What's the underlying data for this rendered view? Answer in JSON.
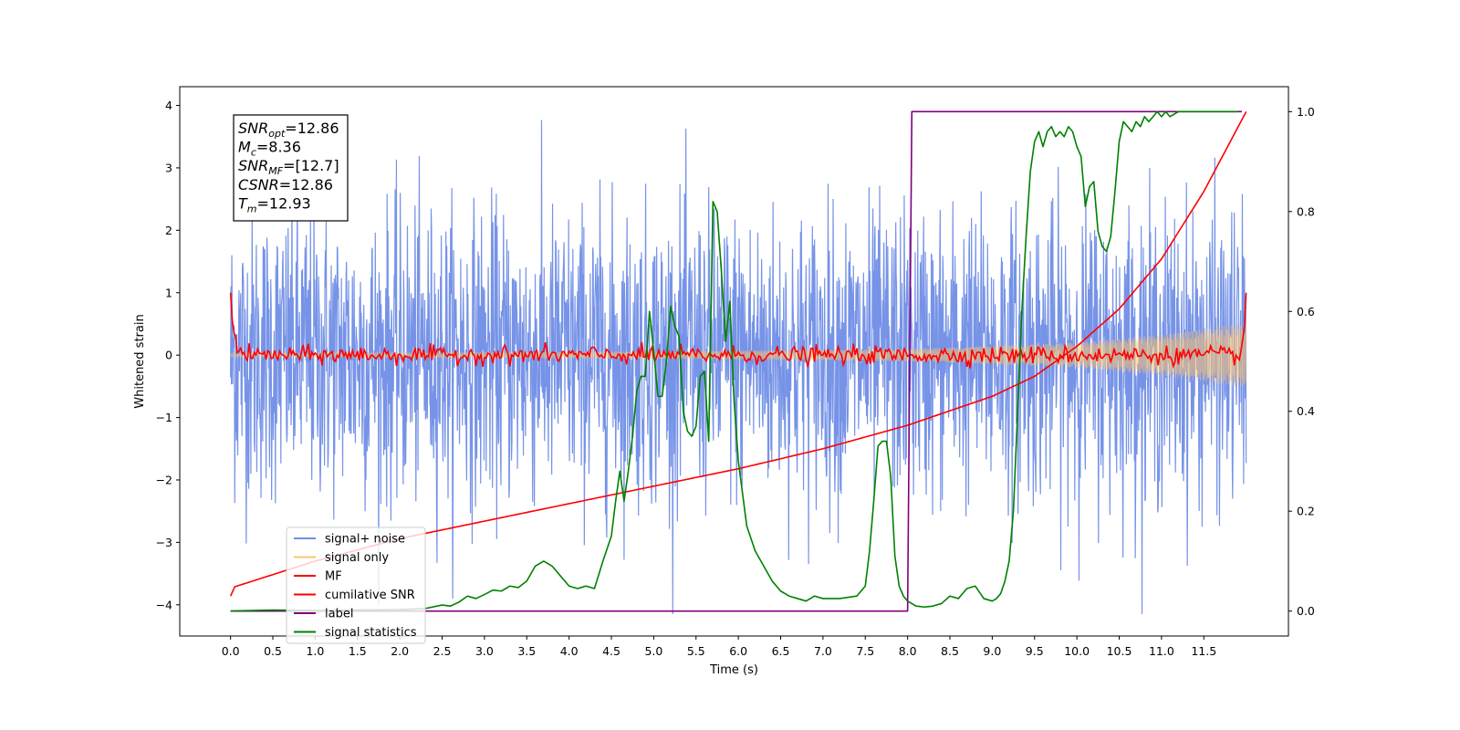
{
  "chart_data": {
    "type": "line",
    "xlabel": "Time (s)",
    "ylabel": "Whitened strain",
    "xlim": [
      -0.6,
      12.5
    ],
    "ylim": [
      -4.5,
      4.3
    ],
    "y2lim": [
      -0.05,
      1.05
    ],
    "x_ticks": [
      0.0,
      0.5,
      1.0,
      1.5,
      2.0,
      2.5,
      3.0,
      3.5,
      4.0,
      4.5,
      5.0,
      5.5,
      6.0,
      6.5,
      7.0,
      7.5,
      8.0,
      8.5,
      9.0,
      9.5,
      10.0,
      10.5,
      11.0,
      11.5
    ],
    "x_tick_labels": [
      "0.0",
      "0.5",
      "1.0",
      "1.5",
      "2.0",
      "2.5",
      "3.0",
      "3.5",
      "4.0",
      "4.5",
      "5.0",
      "5.5",
      "6.0",
      "6.5",
      "7.0",
      "7.5",
      "8.0",
      "8.5",
      "9.0",
      "9.5",
      "10.0",
      "10.5",
      "11.0",
      "11.5"
    ],
    "y_ticks": [
      -4,
      -3,
      -2,
      -1,
      0,
      1,
      2,
      3,
      4
    ],
    "y_tick_labels": [
      "−4",
      "−3",
      "−2",
      "−1",
      "0",
      "1",
      "2",
      "3",
      "4"
    ],
    "y2_ticks": [
      0.0,
      0.2,
      0.4,
      0.6,
      0.8,
      1.0
    ],
    "y2_tick_labels": [
      "0.0",
      "0.2",
      "0.4",
      "0.6",
      "0.8",
      "1.0"
    ],
    "legend_position": "lower-left",
    "info_box": [
      {
        "sym": "SNR",
        "sub": "opt",
        "val": "=12.86"
      },
      {
        "sym": "M",
        "sub": "c",
        "val": "=8.36"
      },
      {
        "sym": "SNR",
        "sub": "MF",
        "val": "=[12.7]"
      },
      {
        "sym": "CSNR",
        "sub": "",
        "val": "=12.86"
      },
      {
        "sym": "T",
        "sub": "m",
        "val": "=12.93"
      }
    ],
    "series": [
      {
        "name": "signal+ noise",
        "color": "#6f8de6",
        "axis": "left",
        "kind": "noise",
        "t_start": 0.0,
        "t_end": 12.0,
        "std": 1.15,
        "range": [
          -4.15,
          3.9
        ]
      },
      {
        "name": "signal only",
        "color": "#ffc36b",
        "axis": "left",
        "kind": "chirp",
        "t_start": 0.0,
        "t_end": 12.0,
        "amplitude_envelope": {
          "x": [
            0,
            2,
            4,
            6,
            8,
            9,
            10,
            11,
            12
          ],
          "y": [
            0.03,
            0.04,
            0.05,
            0.07,
            0.1,
            0.14,
            0.2,
            0.33,
            0.52
          ]
        }
      },
      {
        "name": "MF",
        "color": "#ff0000",
        "axis": "left",
        "kind": "mf",
        "t_start": 0.0,
        "t_end": 12.0,
        "start_value": 1.0,
        "end_value": 1.0,
        "noise_amplitude": 0.07
      },
      {
        "name": "cumilative SNR",
        "color": "#ff0000",
        "axis": "right",
        "x": [
          0.0,
          0.02,
          1.0,
          2.0,
          3.0,
          4.0,
          5.0,
          6.0,
          7.0,
          8.0,
          9.0,
          9.5,
          10.0,
          10.5,
          11.0,
          11.5,
          12.0
        ],
        "y": [
          0.03,
          0.047,
          0.1,
          0.145,
          0.18,
          0.215,
          0.25,
          0.285,
          0.325,
          0.372,
          0.43,
          0.47,
          0.53,
          0.605,
          0.705,
          0.84,
          1.0
        ]
      },
      {
        "name": "label",
        "color": "#800080",
        "axis": "right",
        "x": [
          0.0,
          8.0,
          8.05,
          11.95
        ],
        "y": [
          0.0,
          0.0,
          1.0,
          1.0
        ]
      },
      {
        "name": "signal statistics",
        "color": "#008000",
        "axis": "right",
        "x": [
          0.0,
          0.5,
          1.0,
          1.5,
          2.0,
          2.3,
          2.5,
          2.6,
          2.7,
          2.8,
          2.9,
          3.0,
          3.1,
          3.2,
          3.3,
          3.4,
          3.5,
          3.6,
          3.7,
          3.8,
          3.9,
          4.0,
          4.1,
          4.2,
          4.3,
          4.4,
          4.5,
          4.55,
          4.6,
          4.65,
          4.7,
          4.75,
          4.8,
          4.85,
          4.9,
          4.95,
          5.0,
          5.05,
          5.1,
          5.15,
          5.2,
          5.25,
          5.3,
          5.35,
          5.4,
          5.45,
          5.5,
          5.55,
          5.6,
          5.65,
          5.7,
          5.75,
          5.8,
          5.85,
          5.9,
          5.95,
          6.0,
          6.1,
          6.2,
          6.3,
          6.4,
          6.5,
          6.6,
          6.7,
          6.8,
          6.9,
          7.0,
          7.2,
          7.4,
          7.5,
          7.55,
          7.6,
          7.65,
          7.7,
          7.75,
          7.8,
          7.85,
          7.9,
          7.95,
          8.0,
          8.1,
          8.2,
          8.3,
          8.4,
          8.5,
          8.6,
          8.7,
          8.8,
          8.9,
          9.0,
          9.05,
          9.1,
          9.15,
          9.2,
          9.25,
          9.3,
          9.35,
          9.4,
          9.45,
          9.5,
          9.55,
          9.6,
          9.65,
          9.7,
          9.75,
          9.8,
          9.85,
          9.9,
          9.95,
          10.0,
          10.05,
          10.1,
          10.15,
          10.2,
          10.25,
          10.3,
          10.35,
          10.4,
          10.45,
          10.5,
          10.55,
          10.6,
          10.65,
          10.7,
          10.75,
          10.8,
          10.85,
          10.9,
          10.95,
          11.0,
          11.05,
          11.1,
          11.2,
          11.3,
          11.4,
          11.5,
          11.6,
          11.7,
          11.8,
          11.9
        ],
        "y": [
          0.0,
          0.002,
          0.001,
          0.002,
          0.003,
          0.005,
          0.012,
          0.01,
          0.018,
          0.03,
          0.025,
          0.033,
          0.042,
          0.04,
          0.05,
          0.047,
          0.06,
          0.09,
          0.1,
          0.09,
          0.07,
          0.05,
          0.045,
          0.05,
          0.045,
          0.1,
          0.15,
          0.22,
          0.28,
          0.22,
          0.28,
          0.35,
          0.44,
          0.47,
          0.47,
          0.6,
          0.52,
          0.43,
          0.43,
          0.5,
          0.61,
          0.57,
          0.55,
          0.4,
          0.36,
          0.35,
          0.37,
          0.47,
          0.48,
          0.34,
          0.82,
          0.8,
          0.68,
          0.54,
          0.62,
          0.42,
          0.3,
          0.17,
          0.12,
          0.09,
          0.06,
          0.04,
          0.03,
          0.025,
          0.02,
          0.03,
          0.025,
          0.025,
          0.03,
          0.05,
          0.12,
          0.22,
          0.33,
          0.34,
          0.34,
          0.27,
          0.11,
          0.05,
          0.03,
          0.02,
          0.01,
          0.008,
          0.01,
          0.015,
          0.03,
          0.025,
          0.045,
          0.05,
          0.025,
          0.02,
          0.025,
          0.035,
          0.06,
          0.1,
          0.2,
          0.4,
          0.6,
          0.75,
          0.88,
          0.94,
          0.96,
          0.93,
          0.96,
          0.97,
          0.95,
          0.96,
          0.95,
          0.97,
          0.96,
          0.93,
          0.91,
          0.81,
          0.85,
          0.86,
          0.76,
          0.73,
          0.72,
          0.75,
          0.84,
          0.94,
          0.98,
          0.97,
          0.96,
          0.98,
          0.97,
          0.99,
          0.98,
          0.99,
          1.0,
          0.99,
          1.0,
          0.99,
          1.0,
          1.0,
          1.0,
          1.0,
          1.0,
          1.0,
          1.0,
          1.0
        ]
      }
    ]
  }
}
